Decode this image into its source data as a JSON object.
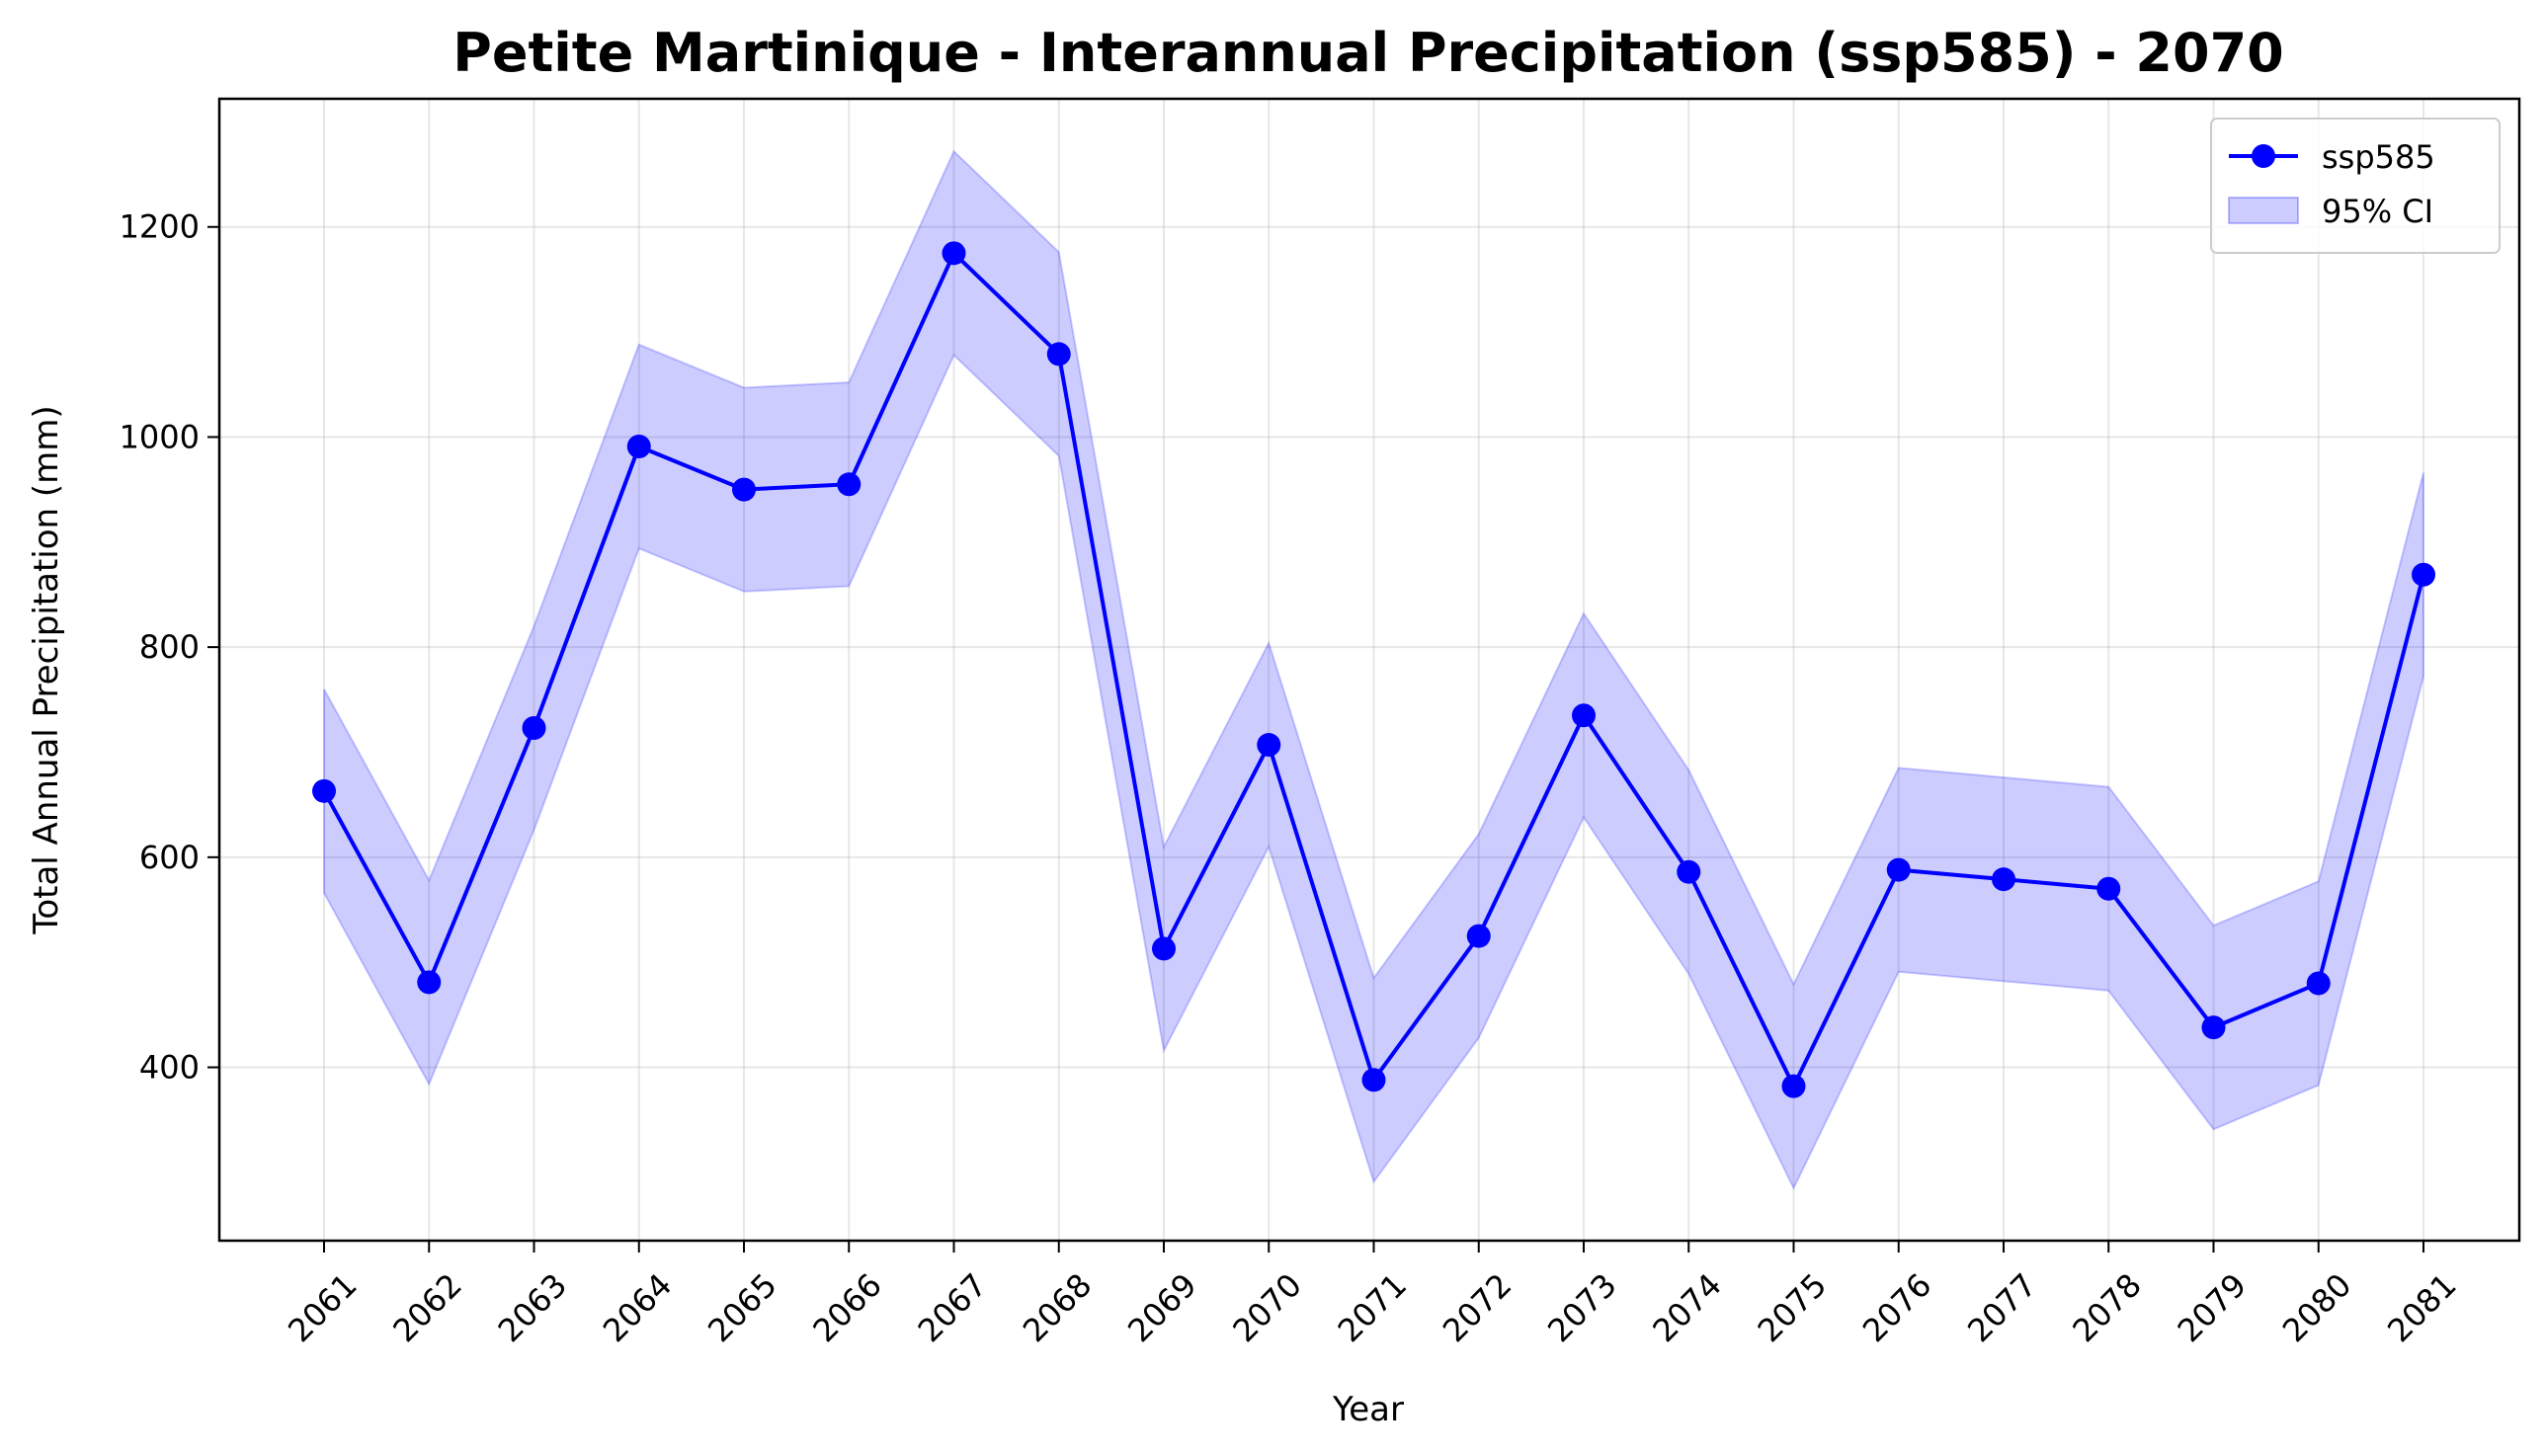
{
  "chart_data": {
    "type": "line",
    "title": "Petite Martinique - Interannual Precipitation (ssp585) - 2070",
    "xlabel": "Year",
    "ylabel": "Total Annual Precipitation (mm)",
    "categories": [
      "2061",
      "2062",
      "2063",
      "2064",
      "2065",
      "2066",
      "2067",
      "2068",
      "2069",
      "2070",
      "2071",
      "2072",
      "2073",
      "2074",
      "2075",
      "2076",
      "2077",
      "2078",
      "2079",
      "2080",
      "2081"
    ],
    "yticks": [
      400,
      600,
      800,
      1000,
      1200
    ],
    "ylim": [
      235,
      1322
    ],
    "grid": true,
    "legend_position": "upper right",
    "series": [
      {
        "name": "ssp585",
        "color": "#0000ff",
        "values": [
          663,
          481,
          723,
          991,
          950,
          955,
          1175,
          1079,
          513,
          707,
          388,
          525,
          735,
          586,
          382,
          588,
          579,
          570,
          438,
          480,
          869
        ]
      }
    ],
    "ci": {
      "name": "95% CI",
      "color": "#0000ff",
      "lower": [
        566,
        384,
        626,
        894,
        853,
        858,
        1078,
        982,
        416,
        610,
        291,
        428,
        638,
        489,
        285,
        491,
        482,
        473,
        341,
        383,
        772
      ],
      "upper": [
        760,
        578,
        820,
        1088,
        1047,
        1052,
        1272,
        1176,
        610,
        804,
        485,
        622,
        832,
        683,
        479,
        685,
        676,
        667,
        535,
        577,
        966
      ]
    }
  }
}
